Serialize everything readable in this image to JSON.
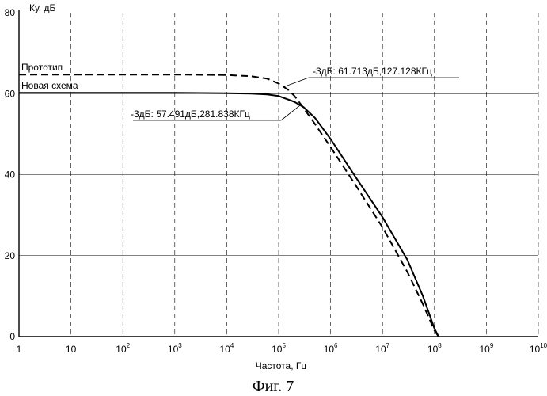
{
  "chart_data": {
    "type": "line",
    "title": "",
    "ylabel": "Ку, дБ",
    "xlabel": "Частота, Гц",
    "x_scale": "log",
    "xlim": [
      1,
      10000000000
    ],
    "ylim": [
      0,
      80
    ],
    "x_ticks": [
      {
        "value": 1,
        "mant": "1",
        "exp": ""
      },
      {
        "value": 10,
        "mant": "10",
        "exp": ""
      },
      {
        "value": 100,
        "mant": "10",
        "exp": "2"
      },
      {
        "value": 1000,
        "mant": "10",
        "exp": "3"
      },
      {
        "value": 10000,
        "mant": "10",
        "exp": "4"
      },
      {
        "value": 100000,
        "mant": "10",
        "exp": "5"
      },
      {
        "value": 1000000,
        "mant": "10",
        "exp": "6"
      },
      {
        "value": 10000000,
        "mant": "10",
        "exp": "7"
      },
      {
        "value": 100000000,
        "mant": "10",
        "exp": "8"
      },
      {
        "value": 1000000000,
        "mant": "10",
        "exp": "9"
      },
      {
        "value": 10000000000,
        "mant": "10",
        "exp": "10"
      }
    ],
    "y_ticks": [
      0,
      20,
      40,
      60,
      80
    ],
    "grid": "horizontal solid, vertical dashed",
    "series": [
      {
        "name": "Прототип",
        "style": "dashed",
        "x": [
          1,
          10,
          100,
          1000,
          10000,
          30000,
          60000,
          100000,
          150000,
          200000,
          300000,
          500000,
          1000000,
          3000000,
          10000000,
          30000000,
          60000000,
          100000000,
          120000000
        ],
        "y": [
          64.7,
          64.7,
          64.7,
          64.7,
          64.6,
          64.3,
          63.7,
          62.5,
          61.0,
          59.5,
          56.5,
          52.5,
          46.8,
          37.5,
          27.0,
          16.0,
          8.0,
          1.5,
          0
        ]
      },
      {
        "name": "Новая схема",
        "style": "solid",
        "x": [
          1,
          10,
          100,
          1000,
          10000,
          30000,
          60000,
          100000,
          200000,
          300000,
          500000,
          1000000,
          3000000,
          10000000,
          30000000,
          60000000,
          100000000,
          120000000
        ],
        "y": [
          60.2,
          60.2,
          60.2,
          60.2,
          60.1,
          60.0,
          59.8,
          59.4,
          58.0,
          56.7,
          54.0,
          48.8,
          39.5,
          29.5,
          19.0,
          10.0,
          2.0,
          0
        ]
      }
    ],
    "annotations": [
      {
        "text": "-3дБ: 61.713дБ,127.128КГц",
        "x": 127128,
        "y": 61.713,
        "series": "Прототип"
      },
      {
        "text": "-3дБ: 57.491дБ,281.838КГц",
        "x": 281838,
        "y": 57.491,
        "series": "Новая схема"
      }
    ],
    "caption": "Фиг. 7"
  }
}
